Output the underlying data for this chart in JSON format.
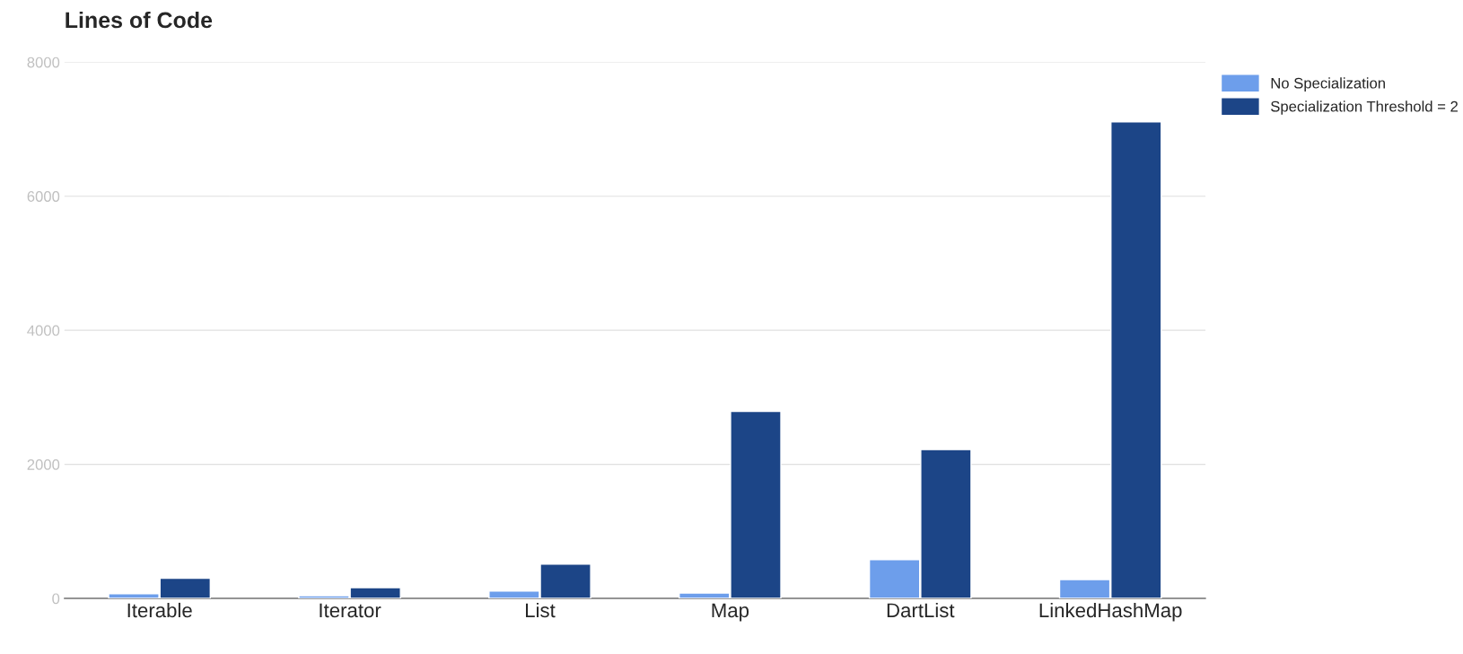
{
  "chart_data": {
    "type": "bar",
    "title": "Lines of Code",
    "categories": [
      "Iterable",
      "Iterator",
      "List",
      "Map",
      "DartList",
      "LinkedHashMap"
    ],
    "series": [
      {
        "name": "No Specialization",
        "color": "#6d9eeb",
        "values": [
          70,
          40,
          110,
          80,
          580,
          280
        ]
      },
      {
        "name": "Specialization Threshold = 2",
        "color": "#1c4587",
        "values": [
          300,
          160,
          510,
          2790,
          2220,
          7110
        ]
      }
    ],
    "ylim": [
      0,
      8000
    ],
    "yticks": [
      0,
      2000,
      4000,
      6000,
      8000
    ],
    "grid": "y",
    "legend": "top right"
  }
}
